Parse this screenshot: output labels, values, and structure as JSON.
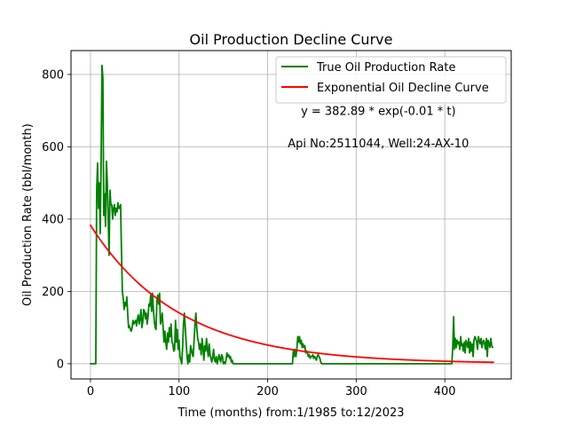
{
  "chart_data": {
    "type": "line",
    "title": "Oil Production Decline Curve",
    "xlabel": "Time (months) from:1/1985 to:12/2023",
    "ylabel": "Oil Production Rate (bbl/month)",
    "xlim": [
      -22,
      475
    ],
    "ylim": [
      -42,
      866
    ],
    "xticks": [
      0,
      100,
      200,
      300,
      400
    ],
    "yticks": [
      0,
      200,
      400,
      600,
      800
    ],
    "grid": true,
    "legend_position": "top-right",
    "annotations": [
      {
        "text": "y = 382.89 * exp(-0.01 * t)",
        "x": 325,
        "y": 688
      },
      {
        "text": "Api No:2511044, Well:24-AX-10",
        "x": 325,
        "y": 598
      }
    ],
    "series": [
      {
        "name": "True Oil Production Rate",
        "color": "#008000",
        "points": [
          [
            0,
            0
          ],
          [
            6,
            0
          ],
          [
            7,
            480
          ],
          [
            8,
            555
          ],
          [
            9,
            430
          ],
          [
            10,
            500
          ],
          [
            11,
            360
          ],
          [
            12,
            560
          ],
          [
            13,
            825
          ],
          [
            14,
            790
          ],
          [
            15,
            410
          ],
          [
            16,
            470
          ],
          [
            17,
            380
          ],
          [
            18,
            560
          ],
          [
            19,
            500
          ],
          [
            20,
            400
          ],
          [
            21,
            300
          ],
          [
            22,
            480
          ],
          [
            23,
            440
          ],
          [
            24,
            440
          ],
          [
            25,
            400
          ],
          [
            26,
            430
          ],
          [
            27,
            440
          ],
          [
            28,
            410
          ],
          [
            29,
            430
          ],
          [
            30,
            420
          ],
          [
            31,
            445
          ],
          [
            32,
            430
          ],
          [
            33,
            430
          ],
          [
            34,
            440
          ],
          [
            35,
            310
          ],
          [
            36,
            200
          ],
          [
            37,
            180
          ],
          [
            38,
            150
          ],
          [
            39,
            170
          ],
          [
            40,
            160
          ],
          [
            41,
            185
          ],
          [
            42,
            140
          ],
          [
            43,
            100
          ],
          [
            44,
            105
          ],
          [
            45,
            95
          ],
          [
            46,
            90
          ],
          [
            47,
            100
          ],
          [
            48,
            120
          ],
          [
            49,
            110
          ],
          [
            50,
            115
          ],
          [
            51,
            120
          ],
          [
            52,
            105
          ],
          [
            53,
            125
          ],
          [
            54,
            135
          ],
          [
            55,
            110
          ],
          [
            56,
            125
          ],
          [
            57,
            150
          ],
          [
            58,
            100
          ],
          [
            59,
            115
          ],
          [
            60,
            150
          ],
          [
            61,
            145
          ],
          [
            62,
            125
          ],
          [
            63,
            140
          ],
          [
            64,
            110
          ],
          [
            65,
            130
          ],
          [
            66,
            165
          ],
          [
            67,
            160
          ],
          [
            68,
            190
          ],
          [
            69,
            145
          ],
          [
            70,
            195
          ],
          [
            71,
            150
          ],
          [
            72,
            120
          ],
          [
            73,
            100
          ],
          [
            74,
            95
          ],
          [
            75,
            175
          ],
          [
            76,
            190
          ],
          [
            77,
            165
          ],
          [
            78,
            195
          ],
          [
            79,
            110
          ],
          [
            80,
            120
          ],
          [
            81,
            140
          ],
          [
            82,
            100
          ],
          [
            83,
            60
          ],
          [
            84,
            90
          ],
          [
            85,
            60
          ],
          [
            86,
            40
          ],
          [
            87,
            85
          ],
          [
            88,
            60
          ],
          [
            89,
            100
          ],
          [
            90,
            75
          ],
          [
            91,
            110
          ],
          [
            92,
            60
          ],
          [
            93,
            55
          ],
          [
            94,
            35
          ],
          [
            95,
            40
          ],
          [
            96,
            120
          ],
          [
            97,
            60
          ],
          [
            98,
            95
          ],
          [
            99,
            40
          ],
          [
            100,
            65
          ],
          [
            101,
            20
          ],
          [
            102,
            10
          ],
          [
            103,
            0
          ],
          [
            104,
            45
          ],
          [
            105,
            110
          ],
          [
            106,
            140
          ],
          [
            107,
            100
          ],
          [
            108,
            60
          ],
          [
            109,
            20
          ],
          [
            110,
            0
          ],
          [
            111,
            25
          ],
          [
            112,
            5
          ],
          [
            113,
            50
          ],
          [
            114,
            40
          ],
          [
            115,
            25
          ],
          [
            116,
            20
          ],
          [
            117,
            65
          ],
          [
            118,
            110
          ],
          [
            119,
            140
          ],
          [
            120,
            100
          ],
          [
            121,
            70
          ],
          [
            122,
            60
          ],
          [
            123,
            40
          ],
          [
            124,
            55
          ],
          [
            125,
            25
          ],
          [
            126,
            70
          ],
          [
            127,
            45
          ],
          [
            128,
            10
          ],
          [
            129,
            50
          ],
          [
            130,
            35
          ],
          [
            131,
            70
          ],
          [
            132,
            40
          ],
          [
            133,
            20
          ],
          [
            134,
            55
          ],
          [
            135,
            25
          ],
          [
            136,
            15
          ],
          [
            137,
            5
          ],
          [
            138,
            20
          ],
          [
            139,
            40
          ],
          [
            140,
            10
          ],
          [
            141,
            5
          ],
          [
            142,
            20
          ],
          [
            143,
            0
          ],
          [
            144,
            10
          ],
          [
            145,
            25
          ],
          [
            146,
            15
          ],
          [
            147,
            5
          ],
          [
            148,
            25
          ],
          [
            149,
            20
          ],
          [
            150,
            0
          ],
          [
            151,
            5
          ],
          [
            152,
            0
          ],
          [
            153,
            10
          ],
          [
            154,
            30
          ],
          [
            155,
            20
          ],
          [
            156,
            25
          ],
          [
            157,
            15
          ],
          [
            158,
            20
          ],
          [
            159,
            5
          ],
          [
            160,
            10
          ],
          [
            161,
            0
          ],
          [
            228,
            0
          ],
          [
            229,
            35
          ],
          [
            230,
            20
          ],
          [
            231,
            40
          ],
          [
            232,
            20
          ],
          [
            233,
            40
          ],
          [
            234,
            75
          ],
          [
            235,
            60
          ],
          [
            236,
            75
          ],
          [
            237,
            55
          ],
          [
            238,
            65
          ],
          [
            239,
            45
          ],
          [
            240,
            55
          ],
          [
            241,
            45
          ],
          [
            242,
            50
          ],
          [
            243,
            30
          ],
          [
            244,
            35
          ],
          [
            245,
            30
          ],
          [
            246,
            20
          ],
          [
            247,
            25
          ],
          [
            248,
            15
          ],
          [
            249,
            20
          ],
          [
            250,
            20
          ],
          [
            251,
            25
          ],
          [
            252,
            15
          ],
          [
            253,
            20
          ],
          [
            254,
            15
          ],
          [
            255,
            10
          ],
          [
            256,
            20
          ],
          [
            257,
            25
          ],
          [
            258,
            20
          ],
          [
            259,
            15
          ],
          [
            260,
            5
          ],
          [
            261,
            0
          ],
          [
            408,
            0
          ],
          [
            409,
            45
          ],
          [
            410,
            130
          ],
          [
            411,
            40
          ],
          [
            412,
            70
          ],
          [
            413,
            45
          ],
          [
            414,
            65
          ],
          [
            415,
            55
          ],
          [
            416,
            60
          ],
          [
            417,
            40
          ],
          [
            418,
            75
          ],
          [
            419,
            50
          ],
          [
            420,
            55
          ],
          [
            421,
            35
          ],
          [
            422,
            60
          ],
          [
            423,
            30
          ],
          [
            424,
            65
          ],
          [
            425,
            55
          ],
          [
            426,
            45
          ],
          [
            427,
            70
          ],
          [
            428,
            30
          ],
          [
            429,
            60
          ],
          [
            430,
            35
          ],
          [
            431,
            55
          ],
          [
            432,
            20
          ],
          [
            433,
            65
          ],
          [
            434,
            75
          ],
          [
            435,
            70
          ],
          [
            436,
            60
          ],
          [
            437,
            40
          ],
          [
            438,
            75
          ],
          [
            439,
            65
          ],
          [
            440,
            55
          ],
          [
            441,
            70
          ],
          [
            442,
            45
          ],
          [
            443,
            60
          ],
          [
            444,
            65
          ],
          [
            445,
            55
          ],
          [
            446,
            40
          ],
          [
            447,
            70
          ],
          [
            448,
            20
          ],
          [
            449,
            65
          ],
          [
            450,
            55
          ],
          [
            451,
            45
          ],
          [
            452,
            70
          ],
          [
            453,
            50
          ],
          [
            454,
            45
          ]
        ]
      },
      {
        "name": "Exponential Oil Decline Curve",
        "color": "#ff0000",
        "function": "exponential",
        "a": 382.89,
        "b": 0.01,
        "x_start": 0,
        "x_end": 455
      }
    ]
  }
}
